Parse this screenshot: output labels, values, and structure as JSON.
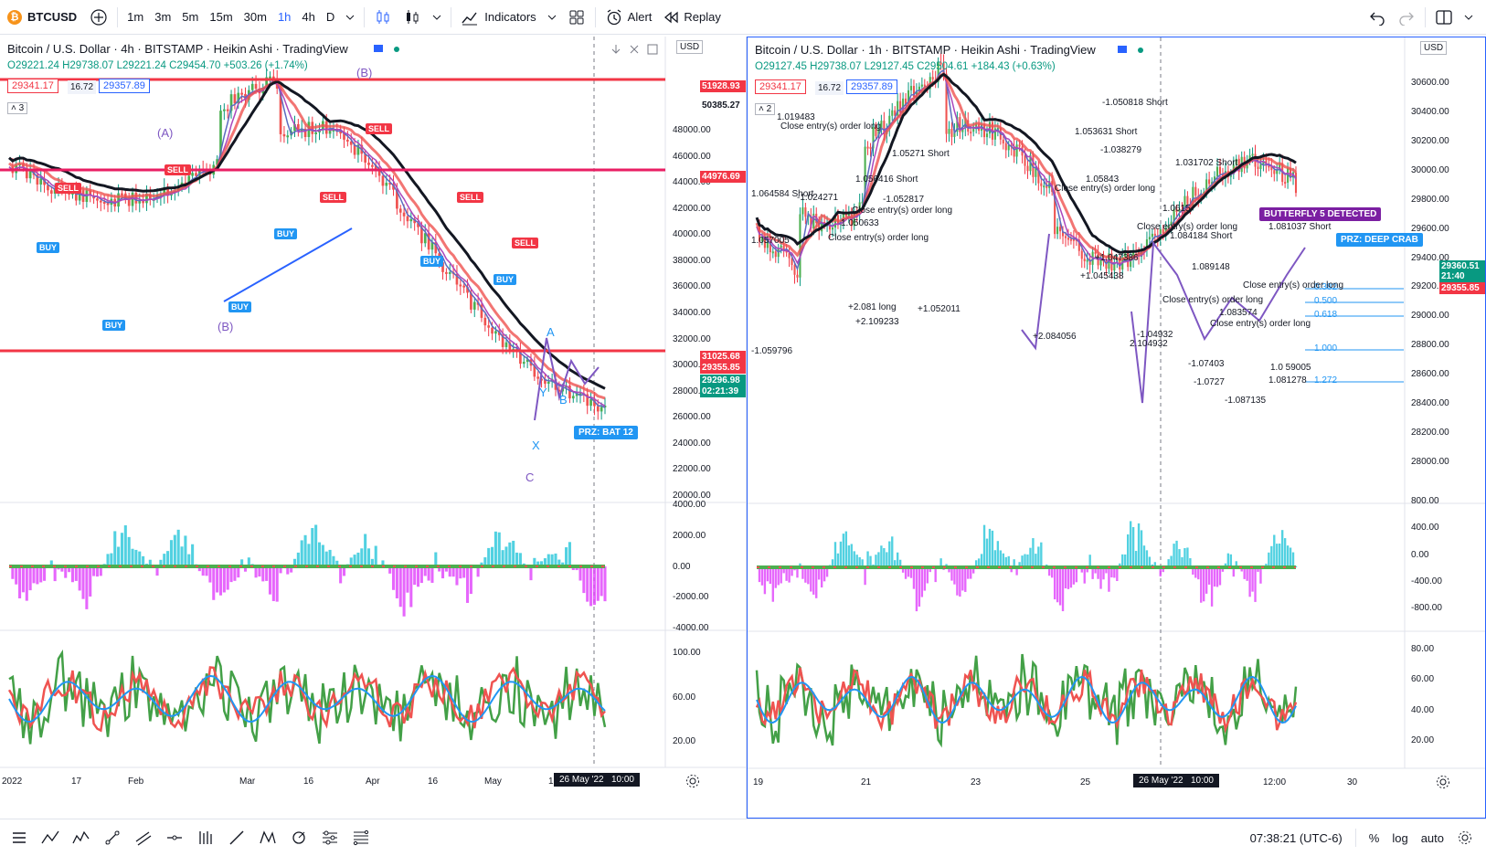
{
  "toolbar": {
    "symbol": "BTCUSD",
    "intervals": [
      "1m",
      "3m",
      "5m",
      "15m",
      "30m",
      "1h",
      "4h",
      "D"
    ],
    "active_interval": "1h",
    "indicators_label": "Indicators",
    "alert_label": "Alert",
    "replay_label": "Replay"
  },
  "left": {
    "title": "Bitcoin / U.S. Dollar · 4h · BITSTAMP · Heikin Ashi · TradingView",
    "ohlc": "O29221.24  H29738.07  L29221.24  C29454.70  +503.26 (+1.74%)",
    "sell_price": "29341.17",
    "spread": "16.72",
    "buy_price": "29357.89",
    "currency": "USD",
    "series_count": "3",
    "price_scale": [
      "48000.00",
      "46000.00",
      "44000.00",
      "42000.00",
      "40000.00",
      "38000.00",
      "36000.00",
      "34000.00",
      "32000.00",
      "30000.00",
      "28000.00",
      "26000.00",
      "24000.00",
      "22000.00",
      "20000.00"
    ],
    "price_tags": [
      {
        "value": "51928.93",
        "color": "#f23645"
      },
      {
        "value": "50385.27",
        "color": "#ffffff"
      },
      {
        "value": "44976.69",
        "color": "#f23645"
      },
      {
        "value": "31025.68",
        "color": "#f23645"
      },
      {
        "value": "29355.85",
        "color": "#f23645"
      },
      {
        "value": "29296.98",
        "color": "#089981"
      },
      {
        "value": "02:21:39",
        "color": "#089981"
      }
    ],
    "osc_scale": [
      "4000.00",
      "2000.00",
      "0.00",
      "-2000.00",
      "-4000.00"
    ],
    "rsi_scale": [
      "100.00",
      "60.00",
      "20.00"
    ],
    "time_axis": [
      "2022",
      "17",
      "Feb",
      "Mar",
      "16",
      "Apr",
      "16",
      "May",
      "1"
    ],
    "time_highlight": "26 May '22",
    "time_highlight2": "10:00",
    "labels": {
      "prz": "PRZ: BAT 12",
      "wave_b": "(B)",
      "wave_a": "(A)",
      "wave_b2": "(B)",
      "wave_c": "C",
      "x_point": "X",
      "a_point": "A",
      "b_point": "B",
      "y_point": "Y",
      "buy": "BUY",
      "sell": "SELL"
    }
  },
  "right": {
    "title": "Bitcoin / U.S. Dollar · 1h · BITSTAMP · Heikin Ashi · TradingView",
    "ohlc": "O29127.45  H29738.07  L29127.45  C29504.61  +184.43 (+0.63%)",
    "sell_price": "29341.17",
    "spread": "16.72",
    "buy_price": "29357.89",
    "currency": "USD",
    "series_count": "2",
    "price_scale": [
      "30600.00",
      "30400.00",
      "30200.00",
      "30000.00",
      "29800.00",
      "29600.00",
      "29400.00",
      "29200.00",
      "29000.00",
      "28800.00",
      "28600.00",
      "28400.00",
      "28200.00",
      "28000.00"
    ],
    "price_tags": [
      {
        "value": "29360.51",
        "color": "#089981"
      },
      {
        "value": "21:40",
        "color": "#089981"
      },
      {
        "value": "29355.85",
        "color": "#f23645"
      }
    ],
    "osc_scale": [
      "800.00",
      "400.00",
      "0.00",
      "-400.00",
      "-800.00"
    ],
    "rsi_scale": [
      "80.00",
      "60.00",
      "40.00",
      "20.00"
    ],
    "time_axis": [
      "19",
      "21",
      "23",
      "25",
      "12:00",
      "30"
    ],
    "time_highlight": "26 May '22",
    "time_highlight2": "10:00",
    "badges": {
      "butterfly": "BUTTERFLY 5 DETECTED",
      "prz": "PRZ: DEEP CRAB"
    },
    "fibs": [
      "0.382",
      "0.500",
      "0.618",
      "1.000",
      "1.272"
    ],
    "annotations": [
      "1.064584 Short",
      "1.019483",
      "1.057005",
      "-1.024271",
      "1.056416 Short",
      "-1.052817",
      "1.05271 Short",
      "1.050633",
      "-1.050818 Short",
      "1.053631 Short",
      "-1.038279",
      "1.05843",
      "1.031702 Short",
      "1.0615",
      "1.084184 Short",
      "1.081037 Short",
      "1.089148",
      "-1.07403",
      "1.083574",
      "1.0 59005",
      "1.081278",
      "-1.087135",
      "2.104932",
      "-1.04932",
      "+2.081 long",
      "+2.109233",
      "+1.052011",
      "+2.084056",
      "-1.059796",
      "+1.045438",
      "+1.047386",
      "-1.0727"
    ],
    "close_label": "Close entry(s) order long"
  },
  "status": {
    "clock": "07:38:21 (UTC-6)",
    "percent": "%",
    "log": "log",
    "auto": "auto"
  },
  "colors": {
    "accent": "#2962ff",
    "bull": "#089981",
    "bear": "#f23645",
    "pink": "#e91e63",
    "cyan": "#26c6da",
    "magenta": "#e040fb"
  }
}
